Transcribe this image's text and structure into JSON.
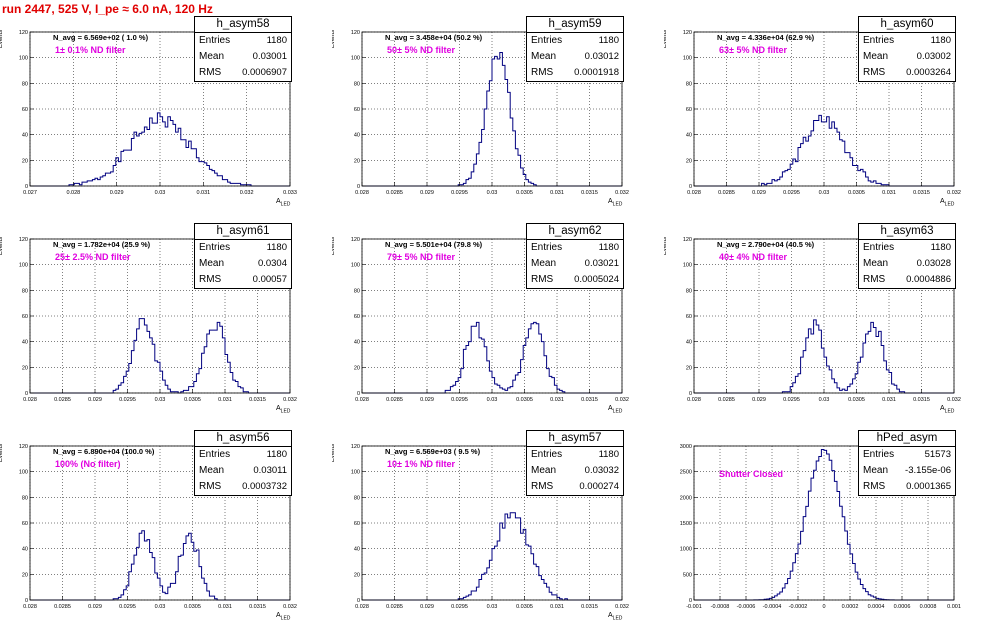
{
  "title": "run 2447,   525 V, I_pe ≈ 6.0 nA, 120 Hz",
  "colors": {
    "title": "#e00000",
    "annotation": "#e000e0",
    "histogram": "#000080"
  },
  "stat_labels": {
    "entries": "Entries",
    "mean": "Mean",
    "rms": "RMS"
  },
  "panels": [
    {
      "name": "h_asym58",
      "entries": "1180",
      "mean": "0.03001",
      "rms": "0.0006907",
      "navg": "N_avg = 6.569e+02 ( 1.0 %)",
      "annotation": "1± 0.1% ND filter",
      "ylabel": "Events",
      "xlabel": "A",
      "xlabel_sub": "LED"
    },
    {
      "name": "h_asym59",
      "entries": "1180",
      "mean": "0.03012",
      "rms": "0.0001918",
      "navg": "N_avg = 3.458e+04 (50.2 %)",
      "annotation": "50± 5% ND filter",
      "ylabel": "Events",
      "xlabel": "A",
      "xlabel_sub": "LED"
    },
    {
      "name": "h_asym60",
      "entries": "1180",
      "mean": "0.03002",
      "rms": "0.0003264",
      "navg": "N_avg = 4.336e+04 (62.9 %)",
      "annotation": "63± 5% ND filter",
      "ylabel": "Events",
      "xlabel": "A",
      "xlabel_sub": "LED"
    },
    {
      "name": "h_asym61",
      "entries": "1180",
      "mean": "0.0304",
      "rms": "0.00057",
      "navg": "N_avg = 1.782e+04 (25.9 %)",
      "annotation": "25± 2.5% ND filter",
      "ylabel": "Events",
      "xlabel": "A",
      "xlabel_sub": "LED"
    },
    {
      "name": "h_asym62",
      "entries": "1180",
      "mean": "0.03021",
      "rms": "0.0005024",
      "navg": "N_avg = 5.501e+04 (79.8 %)",
      "annotation": "79± 5% ND filter",
      "ylabel": "Events",
      "xlabel": "A",
      "xlabel_sub": "LED"
    },
    {
      "name": "h_asym63",
      "entries": "1180",
      "mean": "0.03028",
      "rms": "0.0004886",
      "navg": "N_avg = 2.790e+04 (40.5 %)",
      "annotation": "40± 4% ND filter",
      "ylabel": "Events",
      "xlabel": "A",
      "xlabel_sub": "LED"
    },
    {
      "name": "h_asym56",
      "entries": "1180",
      "mean": "0.03011",
      "rms": "0.0003732",
      "navg": "N_avg = 6.890e+04 (100.0 %)",
      "annotation": "100% (No filter)",
      "ylabel": "Events",
      "xlabel": "A",
      "xlabel_sub": "LED"
    },
    {
      "name": "h_asym57",
      "entries": "1180",
      "mean": "0.03032",
      "rms": "0.000274",
      "navg": "N_avg = 6.569e+03 ( 9.5 %)",
      "annotation": "10± 1% ND filter",
      "ylabel": "Events",
      "xlabel": "A",
      "xlabel_sub": "LED"
    },
    {
      "name": "hPed_asym",
      "entries": "51573",
      "mean": "-3.155e-06",
      "rms": "0.0001365",
      "navg": "",
      "annotation": "Shutter Closed",
      "ylabel": "",
      "xlabel": "",
      "xlabel_sub": ""
    }
  ],
  "chart_data": [
    {
      "type": "histogram",
      "name": "h_asym58",
      "xlim": [
        0.027,
        0.033
      ],
      "ylim": [
        0,
        120
      ],
      "grid": true,
      "xticks": [
        "0.027",
        "0.028",
        "0.029",
        "0.03",
        "0.031",
        "0.032",
        "0.033"
      ],
      "yticks": [
        "0",
        "20",
        "40",
        "60",
        "80",
        "100",
        "120"
      ],
      "peaks": [
        {
          "center": 0.03,
          "sigma": 0.00069,
          "height": 52
        }
      ]
    },
    {
      "type": "histogram",
      "name": "h_asym59",
      "xlim": [
        0.028,
        0.032
      ],
      "ylim": [
        0,
        120
      ],
      "grid": true,
      "xticks": [
        "0.028",
        "0.0285",
        "0.029",
        "0.0295",
        "0.03",
        "0.0305",
        "0.031",
        "0.0315",
        "0.032"
      ],
      "yticks": [
        "0",
        "20",
        "40",
        "60",
        "80",
        "100",
        "120"
      ],
      "peaks": [
        {
          "center": 0.0301,
          "sigma": 0.00019,
          "height": 100
        }
      ]
    },
    {
      "type": "histogram",
      "name": "h_asym60",
      "xlim": [
        0.028,
        0.032
      ],
      "ylim": [
        0,
        120
      ],
      "grid": true,
      "xticks": [
        "0.028",
        "0.0285",
        "0.029",
        "0.0295",
        "0.03",
        "0.0305",
        "0.031",
        "0.0315",
        "0.032"
      ],
      "yticks": [
        "0",
        "20",
        "40",
        "60",
        "80",
        "100",
        "120"
      ],
      "peaks": [
        {
          "center": 0.03,
          "sigma": 0.00033,
          "height": 52
        }
      ]
    },
    {
      "type": "histogram",
      "name": "h_asym61",
      "xlim": [
        0.028,
        0.032
      ],
      "ylim": [
        0,
        120
      ],
      "grid": true,
      "xticks": [
        "0.028",
        "0.0285",
        "0.029",
        "0.0295",
        "0.03",
        "0.0305",
        "0.031",
        "0.0315",
        "0.032"
      ],
      "yticks": [
        "0",
        "20",
        "40",
        "60",
        "80",
        "100",
        "120"
      ],
      "peaks": [
        {
          "center": 0.02975,
          "sigma": 0.00017,
          "height": 55
        },
        {
          "center": 0.03085,
          "sigma": 0.00017,
          "height": 55
        }
      ]
    },
    {
      "type": "histogram",
      "name": "h_asym62",
      "xlim": [
        0.028,
        0.032
      ],
      "ylim": [
        0,
        120
      ],
      "grid": true,
      "xticks": [
        "0.028",
        "0.0285",
        "0.029",
        "0.0295",
        "0.03",
        "0.0305",
        "0.031",
        "0.0315",
        "0.032"
      ],
      "yticks": [
        "0",
        "20",
        "40",
        "60",
        "80",
        "100",
        "120"
      ],
      "peaks": [
        {
          "center": 0.02975,
          "sigma": 0.00016,
          "height": 52
        },
        {
          "center": 0.03065,
          "sigma": 0.00016,
          "height": 52
        }
      ]
    },
    {
      "type": "histogram",
      "name": "h_asym63",
      "xlim": [
        0.028,
        0.032
      ],
      "ylim": [
        0,
        120
      ],
      "grid": true,
      "xticks": [
        "0.028",
        "0.0285",
        "0.029",
        "0.0295",
        "0.03",
        "0.0305",
        "0.031",
        "0.0315",
        "0.032"
      ],
      "yticks": [
        "0",
        "20",
        "40",
        "60",
        "80",
        "100",
        "120"
      ],
      "peaks": [
        {
          "center": 0.02985,
          "sigma": 0.00016,
          "height": 52
        },
        {
          "center": 0.03075,
          "sigma": 0.00016,
          "height": 55
        }
      ]
    },
    {
      "type": "histogram",
      "name": "h_asym56",
      "xlim": [
        0.028,
        0.032
      ],
      "ylim": [
        0,
        120
      ],
      "grid": true,
      "xticks": [
        "0.028",
        "0.0285",
        "0.029",
        "0.0295",
        "0.03",
        "0.0305",
        "0.031",
        "0.0315",
        "0.032"
      ],
      "yticks": [
        "0",
        "20",
        "40",
        "60",
        "80",
        "100",
        "120"
      ],
      "peaks": [
        {
          "center": 0.02975,
          "sigma": 0.00015,
          "height": 52
        },
        {
          "center": 0.03045,
          "sigma": 0.00015,
          "height": 50
        }
      ]
    },
    {
      "type": "histogram",
      "name": "h_asym57",
      "xlim": [
        0.028,
        0.032
      ],
      "ylim": [
        0,
        120
      ],
      "grid": true,
      "xticks": [
        "0.028",
        "0.0285",
        "0.029",
        "0.0295",
        "0.03",
        "0.0305",
        "0.031",
        "0.0315",
        "0.032"
      ],
      "yticks": [
        "0",
        "20",
        "40",
        "60",
        "80",
        "100",
        "120"
      ],
      "peaks": [
        {
          "center": 0.0303,
          "sigma": 0.00027,
          "height": 68
        }
      ]
    },
    {
      "type": "histogram",
      "name": "hPed_asym",
      "xlim": [
        -0.001,
        0.001
      ],
      "ylim": [
        0,
        3000
      ],
      "grid": true,
      "xticks": [
        "-0.001",
        "-0.0008",
        "-0.0006",
        "-0.0004",
        "-0.0002",
        "0",
        "0.0002",
        "0.0004",
        "0.0006",
        "0.0008",
        "0.001"
      ],
      "yticks": [
        "0",
        "500",
        "1000",
        "1500",
        "2000",
        "2500",
        "3000"
      ],
      "peaks": [
        {
          "center": 0,
          "sigma": 0.000137,
          "height": 2900
        }
      ]
    }
  ]
}
